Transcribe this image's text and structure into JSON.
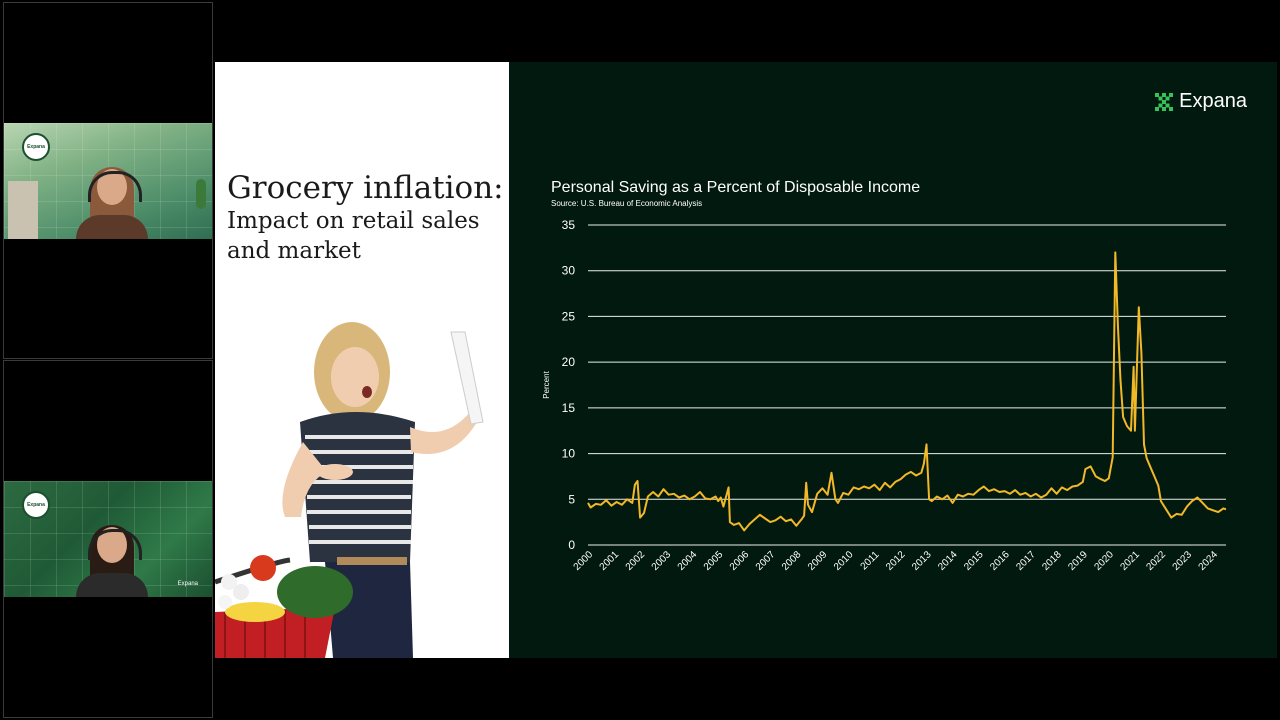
{
  "participants": [
    {
      "name": "participant-1",
      "badge": "Expana"
    },
    {
      "name": "participant-2",
      "badge": "Expana",
      "brand_text": "Expana"
    }
  ],
  "slide": {
    "title_main": "Grocery inflation:",
    "title_sub_line1": "Impact on retail sales",
    "title_sub_line2": "and market",
    "brand": "Expana",
    "accent_color": "#f2b827",
    "background_color": "#02190f"
  },
  "chart_data": {
    "type": "line",
    "title": "Personal Saving as a Percent of Disposable Income",
    "source": "Source: U.S. Bureau of Economic Analysis",
    "ylabel": "Percent",
    "xlabel": "",
    "ylim": [
      0,
      35
    ],
    "yticks": [
      "0",
      "5",
      "10",
      "15",
      "20",
      "25",
      "30",
      "35"
    ],
    "xticks": [
      "2000",
      "2001",
      "2002",
      "2003",
      "2004",
      "2005",
      "2006",
      "2007",
      "2008",
      "2009",
      "2010",
      "2011",
      "2012",
      "2013",
      "2014",
      "2015",
      "2016",
      "2017",
      "2018",
      "2019",
      "2020",
      "2021",
      "2022",
      "2023",
      "2024"
    ],
    "grid": true,
    "series": [
      {
        "color": "#f2b827",
        "points": [
          [
            2000.0,
            4.6
          ],
          [
            2000.1,
            4.1
          ],
          [
            2000.3,
            4.5
          ],
          [
            2000.5,
            4.4
          ],
          [
            2000.7,
            4.9
          ],
          [
            2000.9,
            4.3
          ],
          [
            2001.1,
            4.7
          ],
          [
            2001.3,
            4.4
          ],
          [
            2001.5,
            5.0
          ],
          [
            2001.7,
            4.6
          ],
          [
            2001.8,
            6.6
          ],
          [
            2001.9,
            7.0
          ],
          [
            2002.0,
            3.0
          ],
          [
            2002.15,
            3.5
          ],
          [
            2002.3,
            5.3
          ],
          [
            2002.5,
            5.8
          ],
          [
            2002.7,
            5.3
          ],
          [
            2002.9,
            6.1
          ],
          [
            2003.1,
            5.5
          ],
          [
            2003.3,
            5.6
          ],
          [
            2003.5,
            5.2
          ],
          [
            2003.7,
            5.4
          ],
          [
            2003.9,
            5.0
          ],
          [
            2004.1,
            5.3
          ],
          [
            2004.3,
            5.8
          ],
          [
            2004.5,
            5.1
          ],
          [
            2004.7,
            5.0
          ],
          [
            2004.9,
            5.3
          ],
          [
            2005.0,
            4.8
          ],
          [
            2005.1,
            5.2
          ],
          [
            2005.2,
            4.2
          ],
          [
            2005.4,
            6.3
          ],
          [
            2005.45,
            2.5
          ],
          [
            2005.6,
            2.2
          ],
          [
            2005.8,
            2.4
          ],
          [
            2006.0,
            1.6
          ],
          [
            2006.2,
            2.3
          ],
          [
            2006.4,
            2.8
          ],
          [
            2006.6,
            3.3
          ],
          [
            2006.8,
            2.9
          ],
          [
            2007.0,
            2.5
          ],
          [
            2007.2,
            2.7
          ],
          [
            2007.4,
            3.1
          ],
          [
            2007.6,
            2.6
          ],
          [
            2007.8,
            2.8
          ],
          [
            2008.0,
            2.1
          ],
          [
            2008.2,
            2.8
          ],
          [
            2008.3,
            3.2
          ],
          [
            2008.38,
            6.8
          ],
          [
            2008.45,
            4.4
          ],
          [
            2008.6,
            3.6
          ],
          [
            2008.8,
            5.6
          ],
          [
            2009.0,
            6.2
          ],
          [
            2009.2,
            5.5
          ],
          [
            2009.35,
            7.9
          ],
          [
            2009.5,
            5.0
          ],
          [
            2009.6,
            4.6
          ],
          [
            2009.8,
            5.7
          ],
          [
            2010.0,
            5.5
          ],
          [
            2010.2,
            6.3
          ],
          [
            2010.4,
            6.1
          ],
          [
            2010.6,
            6.4
          ],
          [
            2010.8,
            6.2
          ],
          [
            2011.0,
            6.6
          ],
          [
            2011.2,
            6.0
          ],
          [
            2011.4,
            6.8
          ],
          [
            2011.6,
            6.3
          ],
          [
            2011.8,
            6.9
          ],
          [
            2012.0,
            7.2
          ],
          [
            2012.2,
            7.7
          ],
          [
            2012.4,
            8.0
          ],
          [
            2012.6,
            7.6
          ],
          [
            2012.8,
            7.9
          ],
          [
            2012.9,
            8.9
          ],
          [
            2013.0,
            11.0
          ],
          [
            2013.1,
            5.0
          ],
          [
            2013.2,
            4.8
          ],
          [
            2013.4,
            5.3
          ],
          [
            2013.6,
            5.0
          ],
          [
            2013.8,
            5.4
          ],
          [
            2014.0,
            4.6
          ],
          [
            2014.2,
            5.5
          ],
          [
            2014.4,
            5.3
          ],
          [
            2014.6,
            5.6
          ],
          [
            2014.8,
            5.5
          ],
          [
            2015.0,
            6.0
          ],
          [
            2015.2,
            6.4
          ],
          [
            2015.4,
            5.9
          ],
          [
            2015.6,
            6.1
          ],
          [
            2015.8,
            5.8
          ],
          [
            2016.0,
            5.9
          ],
          [
            2016.2,
            5.6
          ],
          [
            2016.4,
            6.0
          ],
          [
            2016.6,
            5.5
          ],
          [
            2016.8,
            5.7
          ],
          [
            2017.0,
            5.3
          ],
          [
            2017.2,
            5.6
          ],
          [
            2017.4,
            5.2
          ],
          [
            2017.6,
            5.5
          ],
          [
            2017.8,
            6.2
          ],
          [
            2018.0,
            5.6
          ],
          [
            2018.2,
            6.3
          ],
          [
            2018.4,
            6.0
          ],
          [
            2018.6,
            6.4
          ],
          [
            2018.8,
            6.5
          ],
          [
            2019.0,
            6.9
          ],
          [
            2019.1,
            8.3
          ],
          [
            2019.3,
            8.6
          ],
          [
            2019.5,
            7.5
          ],
          [
            2019.7,
            7.2
          ],
          [
            2019.85,
            7.0
          ],
          [
            2020.0,
            7.3
          ],
          [
            2020.15,
            9.6
          ],
          [
            2020.25,
            32.0
          ],
          [
            2020.35,
            24.0
          ],
          [
            2020.45,
            18.0
          ],
          [
            2020.55,
            14.0
          ],
          [
            2020.7,
            13.0
          ],
          [
            2020.85,
            12.5
          ],
          [
            2020.95,
            19.5
          ],
          [
            2021.0,
            12.5
          ],
          [
            2021.15,
            26.0
          ],
          [
            2021.25,
            21.0
          ],
          [
            2021.35,
            11.0
          ],
          [
            2021.45,
            9.5
          ],
          [
            2021.6,
            8.5
          ],
          [
            2021.75,
            7.5
          ],
          [
            2021.9,
            6.5
          ],
          [
            2022.0,
            4.8
          ],
          [
            2022.2,
            3.9
          ],
          [
            2022.4,
            3.0
          ],
          [
            2022.6,
            3.4
          ],
          [
            2022.8,
            3.3
          ],
          [
            2023.0,
            4.2
          ],
          [
            2023.2,
            4.8
          ],
          [
            2023.4,
            5.2
          ],
          [
            2023.6,
            4.6
          ],
          [
            2023.8,
            4.0
          ],
          [
            2024.0,
            3.8
          ],
          [
            2024.2,
            3.6
          ],
          [
            2024.4,
            4.0
          ],
          [
            2024.5,
            3.9
          ]
        ]
      }
    ]
  }
}
